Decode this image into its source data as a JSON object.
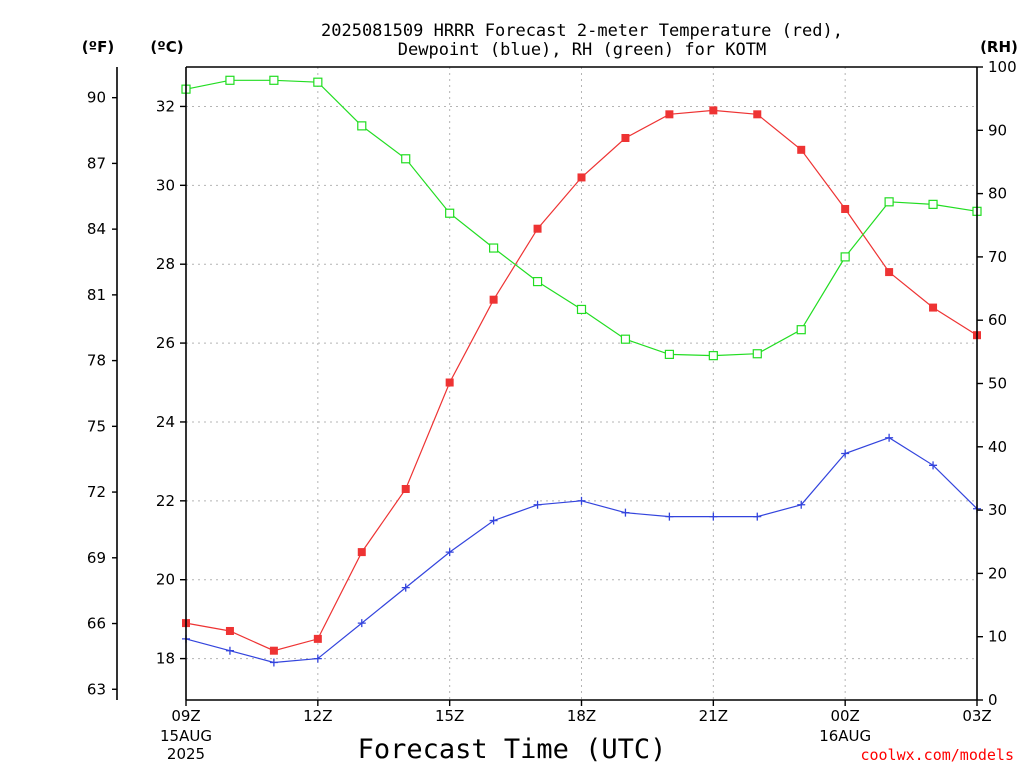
{
  "chart_data": {
    "type": "line",
    "title_line1": "2025081509 HRRR Forecast 2-meter Temperature (red),",
    "title_line2": "Dewpoint (blue), RH (green) for KOTM",
    "xlabel": "Forecast Time (UTC)",
    "credit": "coolwx.com/models",
    "units": {
      "fahrenheit": "(ºF)",
      "celsius": "(ºC)",
      "rh": "(RH)"
    },
    "x_hours": [
      0,
      1,
      2,
      3,
      4,
      5,
      6,
      7,
      8,
      9,
      10,
      11,
      12,
      13,
      14,
      15,
      16,
      17,
      18
    ],
    "x_range": [
      0,
      18
    ],
    "x_ticks": [
      {
        "hour": 0,
        "label": "09Z",
        "date": [
          "15AUG",
          "2025"
        ]
      },
      {
        "hour": 3,
        "label": "12Z",
        "date": []
      },
      {
        "hour": 6,
        "label": "15Z",
        "date": []
      },
      {
        "hour": 9,
        "label": "18Z",
        "date": []
      },
      {
        "hour": 12,
        "label": "21Z",
        "date": []
      },
      {
        "hour": 15,
        "label": "00Z",
        "date": [
          "16AUG"
        ]
      },
      {
        "hour": 18,
        "label": "03Z",
        "date": []
      }
    ],
    "celsius_range": [
      16.95,
      33.0
    ],
    "celsius_ticks": [
      18,
      20,
      22,
      24,
      26,
      28,
      30,
      32
    ],
    "fahrenheit_ticks": [
      63,
      66,
      69,
      72,
      75,
      78,
      81,
      84,
      87,
      90
    ],
    "rh_range": [
      0,
      100
    ],
    "rh_ticks": [
      0,
      10,
      20,
      30,
      40,
      50,
      60,
      70,
      80,
      90,
      100
    ],
    "series": [
      {
        "name": "Temperature",
        "color": "#ee3333",
        "marker": "filled-square",
        "axis": "celsius",
        "values": [
          18.9,
          18.7,
          18.2,
          18.5,
          20.7,
          22.3,
          25.0,
          27.1,
          28.9,
          30.2,
          31.2,
          31.8,
          31.9,
          31.8,
          30.9,
          29.4,
          27.8,
          26.9,
          26.2
        ]
      },
      {
        "name": "Dewpoint",
        "color": "#3344dd",
        "marker": "plus",
        "axis": "celsius",
        "values": [
          18.5,
          18.2,
          17.9,
          18.0,
          18.9,
          19.8,
          20.7,
          21.5,
          21.9,
          22.0,
          21.7,
          21.6,
          21.6,
          21.6,
          21.9,
          23.2,
          23.6,
          22.9,
          21.8
        ]
      },
      {
        "name": "RH",
        "color": "#22dd22",
        "marker": "open-square",
        "axis": "rh",
        "values": [
          96.5,
          97.9,
          97.9,
          97.6,
          90.7,
          85.5,
          76.9,
          71.4,
          66.1,
          61.7,
          57.0,
          54.6,
          54.4,
          54.7,
          58.5,
          70.0,
          78.7,
          78.3,
          77.2
        ]
      }
    ],
    "grid": true
  }
}
